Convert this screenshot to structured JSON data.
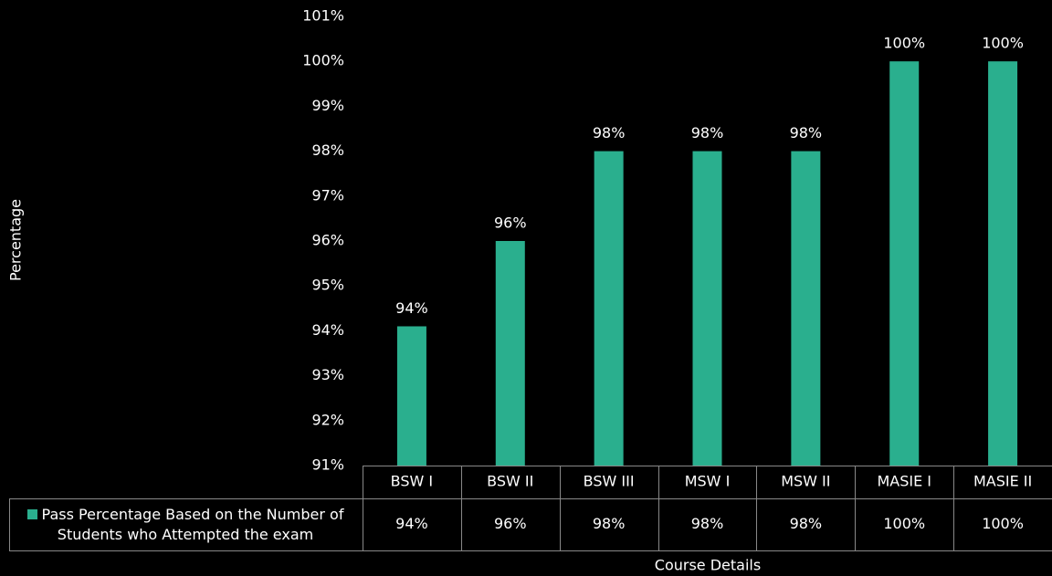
{
  "chart_data": {
    "type": "bar",
    "x_label": "Course Details",
    "y_label": "Percentage",
    "categories": [
      "BSW I",
      "BSW II",
      "BSW III",
      "MSW I",
      "MSW II",
      "MASIE I",
      "MASIE II"
    ],
    "series": [
      {
        "name": "Pass Percentage Based on the Number of Students who Attempted the exam",
        "color": "#2aaf8e",
        "values": [
          94.1,
          96,
          98,
          98,
          98,
          100,
          100
        ],
        "value_labels": [
          "94%",
          "96%",
          "98%",
          "98%",
          "98%",
          "100%",
          "100%"
        ]
      }
    ],
    "ylim": [
      91,
      101
    ],
    "yticks": [
      {
        "value": 91,
        "label": "91%"
      },
      {
        "value": 92,
        "label": "92%"
      },
      {
        "value": 93,
        "label": "93%"
      },
      {
        "value": 94,
        "label": "94%"
      },
      {
        "value": 95,
        "label": "95%"
      },
      {
        "value": 96,
        "label": "96%"
      },
      {
        "value": 97,
        "label": "97%"
      },
      {
        "value": 98,
        "label": "98%"
      },
      {
        "value": 99,
        "label": "99%"
      },
      {
        "value": 100,
        "label": "100%"
      },
      {
        "value": 101,
        "label": "101%"
      }
    ],
    "grid": false,
    "data_table": true
  }
}
